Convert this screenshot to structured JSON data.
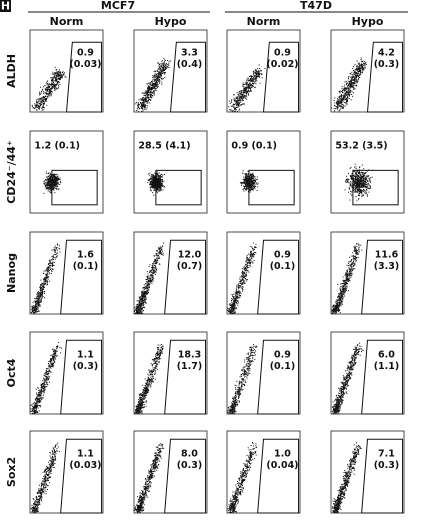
{
  "panel_label": "H",
  "groups": [
    "MCF7",
    "T47D"
  ],
  "conditions": [
    "Norm",
    "Hypo",
    "Norm",
    "Hypo"
  ],
  "rows": [
    {
      "label": "ALDH",
      "panels": [
        {
          "lines": [
            "0.9",
            "(0.03)"
          ]
        },
        {
          "lines": [
            "3.3",
            "(0.4)"
          ]
        },
        {
          "lines": [
            "0.9",
            "(0.02)"
          ]
        },
        {
          "lines": [
            "4.2",
            "(0.3)"
          ]
        }
      ]
    },
    {
      "label": "CD24⁻/44⁺",
      "panels": [
        {
          "lines": [
            "1.2 (0.1)"
          ]
        },
        {
          "lines": [
            "28.5 (4.1)"
          ]
        },
        {
          "lines": [
            "0.9 (0.1)"
          ]
        },
        {
          "lines": [
            "53.2 (3.5)"
          ]
        }
      ]
    },
    {
      "label": "Nanog",
      "panels": [
        {
          "lines": [
            "1.6",
            "(0.1)"
          ]
        },
        {
          "lines": [
            "12.0",
            "(0.7)"
          ]
        },
        {
          "lines": [
            "0.9",
            "(0.1)"
          ]
        },
        {
          "lines": [
            "11.6",
            "(3.3)"
          ]
        }
      ]
    },
    {
      "label": "Oct4",
      "panels": [
        {
          "lines": [
            "1.1",
            "(0.3)"
          ]
        },
        {
          "lines": [
            "18.3",
            "(1.7)"
          ]
        },
        {
          "lines": [
            "0.9",
            "(0.1)"
          ]
        },
        {
          "lines": [
            "6.0",
            "(1.1)"
          ]
        }
      ]
    },
    {
      "label": "Sox2",
      "panels": [
        {
          "lines": [
            "1.1",
            "(0.03)"
          ]
        },
        {
          "lines": [
            "8.0",
            "(0.3)"
          ]
        },
        {
          "lines": [
            "1.0",
            "(0.04)"
          ]
        },
        {
          "lines": [
            "7.1",
            "(0.3)"
          ]
        }
      ]
    }
  ]
}
